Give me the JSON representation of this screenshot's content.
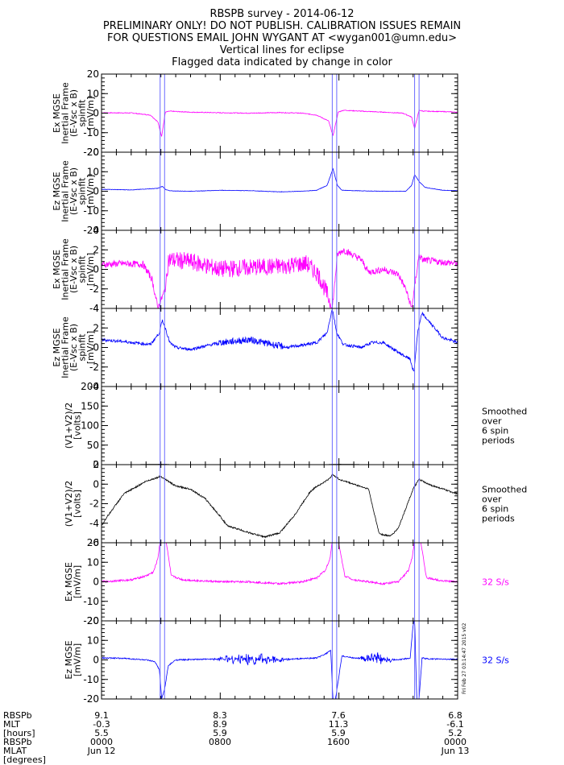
{
  "header": {
    "lines": [
      "RBSPB survey - 2014-06-12",
      "PRELIMINARY ONLY! DO NOT PUBLISH. CALIBRATION ISSUES REMAIN",
      "FOR QUESTIONS EMAIL JOHN WYGANT AT <wygan001@umn.edu>",
      "Vertical lines for eclipse",
      "Flagged data indicated by change in color"
    ]
  },
  "colors": {
    "magenta": "#ff00ff",
    "blue": "#0000ff",
    "black": "#000000",
    "eclipse": "#6a6aff"
  },
  "chart_data": {
    "type": "line",
    "x_unit": "hours since 2014-06-12 00:00 UT",
    "xlim": [
      0,
      24
    ],
    "eclipse_intervals": [
      [
        3.95,
        4.25
      ],
      [
        15.55,
        15.85
      ],
      [
        21.1,
        21.4
      ]
    ],
    "panels": [
      {
        "ylabel": [
          "Ex MGSE",
          "Inertial Frame",
          "(E-Vsc x B)",
          "spinfit",
          "[mV/m]"
        ],
        "ylim": [
          -20,
          20
        ],
        "yticks": [
          -20,
          -10,
          0,
          10,
          20
        ],
        "color": "#ff00ff",
        "noise": 0.2,
        "side_label": "",
        "x": [
          0,
          2,
          3.3,
          3.8,
          4.05,
          4.3,
          4.6,
          6,
          8,
          10,
          12,
          13.5,
          14.5,
          15.3,
          15.6,
          15.95,
          16.3,
          17.5,
          19,
          20.3,
          20.9,
          21.1,
          21.4,
          21.7,
          23,
          24
        ],
        "y": [
          0.2,
          0.1,
          -1,
          -4.5,
          -12,
          0.5,
          1,
          0.5,
          0.2,
          0,
          0.3,
          0,
          -1,
          -4,
          -11.5,
          0.5,
          1.5,
          1,
          0.5,
          0,
          -2,
          -8,
          1.5,
          1,
          0.8,
          0.5
        ]
      },
      {
        "ylabel": [
          "Ez MGSE",
          "Inertial Frame",
          "(E-Vsc x B)",
          "spinfit",
          "[mV/m]"
        ],
        "ylim": [
          -20,
          20
        ],
        "yticks": [
          -20,
          -10,
          0,
          10,
          20
        ],
        "color": "#0000ff",
        "noise": 0.1,
        "side_label": "",
        "x": [
          0,
          2,
          3.8,
          4.1,
          4.3,
          4.6,
          6,
          8,
          10,
          12,
          13.5,
          14.5,
          15.2,
          15.6,
          15.9,
          16.2,
          17.5,
          19,
          20.5,
          20.9,
          21.1,
          21.4,
          21.8,
          23,
          24
        ],
        "y": [
          1,
          0.7,
          1.5,
          2.5,
          1,
          0.2,
          0,
          0.5,
          0.3,
          -0.3,
          0,
          0.5,
          3,
          11.5,
          3,
          0.5,
          0.2,
          0,
          0,
          3,
          8.5,
          5,
          2,
          0.5,
          0.3
        ]
      },
      {
        "ylabel": [
          "Ex MGSE",
          "Inertial Frame",
          "(E-Vsc x B)",
          "spinfit",
          "[mV/m]"
        ],
        "ylim": [
          -4,
          4
        ],
        "yticks": [
          -4,
          -2,
          0,
          2,
          4
        ],
        "color": "#ff00ff",
        "noise": 0.35,
        "side_label": "",
        "x": [
          0,
          1.5,
          2.8,
          3.4,
          3.8,
          4.3,
          4.5,
          6,
          8,
          10,
          12,
          13.8,
          14.6,
          15.2,
          15.55,
          15.9,
          16.3,
          17.5,
          18,
          19,
          20,
          20.5,
          20.9,
          21.4,
          21.6,
          22.5,
          24
        ],
        "y": [
          0.5,
          0.6,
          0.5,
          -1,
          -4,
          -2,
          1,
          0.8,
          0,
          0.2,
          0.3,
          0.6,
          -0.5,
          -2.5,
          -4,
          1.5,
          2,
          1,
          -0.3,
          0,
          -0.5,
          -2,
          -4,
          1.5,
          1,
          0.8,
          0.6
        ]
      },
      {
        "ylabel": [
          "Ez MGSE",
          "Inertial Frame",
          "(E-Vsc x B)",
          "spinfit",
          "[mV/m]"
        ],
        "ylim": [
          -4,
          4
        ],
        "yticks": [
          -4,
          -2,
          0,
          2,
          4
        ],
        "color": "#0000ff",
        "noise": 0.15,
        "side_label": "",
        "x": [
          0,
          1.5,
          3.3,
          3.9,
          4.1,
          4.3,
          4.6,
          5,
          6,
          8,
          10,
          12.5,
          13.8,
          14.5,
          15.2,
          15.55,
          15.85,
          16.3,
          17.5,
          18.2,
          19,
          20,
          20.8,
          21.05,
          21.3,
          21.6,
          23,
          24
        ],
        "y": [
          0.8,
          0.6,
          0.3,
          1.5,
          2.8,
          2,
          0.5,
          0,
          -0.2,
          0.5,
          0.8,
          0,
          0.3,
          0.5,
          1.5,
          4,
          1.5,
          0.3,
          0,
          0.5,
          0.5,
          -0.5,
          -1.2,
          -2.6,
          1.5,
          3.5,
          1,
          0.5
        ]
      },
      {
        "ylabel": [
          "(V1+V2)/2",
          "[volts]"
        ],
        "ylim": [
          0,
          200
        ],
        "yticks": [
          0,
          50,
          100,
          150,
          200
        ],
        "color": "#000000",
        "noise": 0,
        "side_label": [
          "Smoothed",
          "over",
          "6 spin",
          "periods"
        ],
        "x": [
          0,
          4,
          8,
          12,
          16,
          20,
          24
        ],
        "y": [
          -1,
          1,
          -4,
          -3,
          1,
          -1,
          -1
        ]
      },
      {
        "ylabel": [
          "(V1+V2)/2",
          "[volts]"
        ],
        "ylim": [
          -6,
          2
        ],
        "yticks": [
          -6,
          -4,
          -2,
          0,
          2
        ],
        "color": "#000000",
        "noise": 0.08,
        "side_label": [
          "Smoothed",
          "over",
          "6 spin",
          "periods"
        ],
        "x": [
          0,
          0.3,
          1.5,
          3,
          4,
          4.3,
          5,
          6,
          7,
          8,
          8.5,
          9,
          10,
          11,
          12,
          13,
          14,
          14.5,
          14.8,
          15.3,
          15.6,
          16,
          17,
          18,
          18.3,
          18.7,
          19,
          19.5,
          20,
          21,
          21.4,
          22,
          23,
          24
        ],
        "y": [
          -4.3,
          -3.5,
          -1,
          0.3,
          0.8,
          0.5,
          -0.2,
          -0.5,
          -1.5,
          -3.3,
          -4.3,
          -4.5,
          -5,
          -5.4,
          -5,
          -3.2,
          -0.9,
          -0.2,
          0,
          0.5,
          1,
          0.5,
          0,
          -0.5,
          -2.5,
          -5,
          -5.2,
          -5.3,
          -4.5,
          -0.5,
          0.5,
          0,
          -0.5,
          -1
        ]
      },
      {
        "ylabel": [
          "Ex MGSE",
          "[mV/m]"
        ],
        "ylim": [
          -20,
          20
        ],
        "yticks": [
          -20,
          -10,
          0,
          10,
          20
        ],
        "color": "#ff00ff",
        "noise": 0.5,
        "side_label": [
          "32 S/s"
        ],
        "x": [
          0,
          2,
          3,
          3.5,
          3.8,
          3.95,
          4.35,
          4.7,
          5.5,
          8,
          10,
          12,
          13.5,
          14.5,
          15.1,
          15.4,
          15.55,
          15.95,
          16.4,
          17,
          19,
          20,
          20.7,
          20.95,
          21.1,
          21.5,
          21.9,
          23,
          24
        ],
        "y": [
          0,
          1,
          3,
          5,
          12,
          21,
          21,
          3,
          1,
          0,
          0,
          -1,
          0,
          2,
          6,
          12,
          21,
          21,
          3,
          1,
          -1,
          0,
          6,
          13,
          21,
          21,
          2,
          0.5,
          0
        ]
      },
      {
        "ylabel": [
          "Ez MGSE",
          "[mV/m]"
        ],
        "ylim": [
          -20,
          20
        ],
        "yticks": [
          -20,
          -10,
          0,
          10,
          20
        ],
        "color": "#0000ff",
        "noise": 0.3,
        "side_label": [
          "32 S/s"
        ],
        "x": [
          0,
          1.5,
          3,
          3.6,
          3.9,
          4.05,
          4.25,
          4.5,
          5,
          8,
          10,
          12,
          13,
          14.5,
          15.1,
          15.45,
          15.6,
          15.75,
          16.2,
          17,
          20,
          20.8,
          21.0,
          21.1,
          21.25,
          21.4,
          21.6,
          22,
          24
        ],
        "y": [
          1,
          0.8,
          0,
          -1,
          -5,
          -20,
          -15,
          -3,
          0,
          0.5,
          0.5,
          0,
          0.5,
          1,
          3,
          5,
          -21,
          -21,
          2,
          1,
          0,
          1,
          18,
          21,
          -21,
          -20,
          1,
          0.5,
          0.3
        ]
      }
    ],
    "bursts": [
      {
        "panel": 2,
        "start": 4.4,
        "end": 15.4,
        "amp": 0.9
      },
      {
        "panel": 2,
        "start": 16.2,
        "end": 21.0,
        "amp": 0.3
      },
      {
        "panel": 3,
        "start": 7.8,
        "end": 12.2,
        "amp": 0.35
      },
      {
        "panel": 7,
        "start": 7.3,
        "end": 12.8,
        "amp": 3.5,
        "envelope": true
      },
      {
        "panel": 7,
        "start": 17.2,
        "end": 19.8,
        "amp": 3.5,
        "envelope": true
      }
    ],
    "xaxis": {
      "row_labels": [
        "RBSPb",
        "MLT",
        "[hours]",
        "RBSPb",
        "MLAT",
        "[degrees]"
      ],
      "ticks": [
        {
          "x": 0,
          "mlt": "9.1",
          "mlat": "-0.3",
          "dist": "5.5",
          "time": "0000",
          "date": "Jun 12"
        },
        {
          "x": 8,
          "mlt": "8.3",
          "mlat": "8.9",
          "dist": "5.9",
          "time": "0800",
          "date": ""
        },
        {
          "x": 16,
          "mlt": "7.6",
          "mlat": "11.3",
          "dist": "5.9",
          "time": "1600",
          "date": ""
        },
        {
          "x": 24,
          "mlt": "6.8",
          "mlat": "-6.1",
          "dist": "5.2",
          "time": "0000",
          "date": "Jun 13"
        }
      ]
    },
    "stamp": "Fri Feb 27 03:14:47 2015 v02"
  }
}
